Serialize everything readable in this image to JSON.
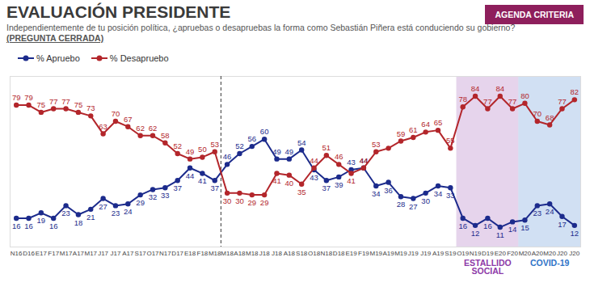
{
  "chart_data": {
    "type": "line",
    "title": "EVALUACIÓN PRESIDENTE",
    "subtitle": "Independientemente de tu posición política, ¿apruebas o desapruebas la forma como Sebastián Piñera está conduciendo su gobierno?",
    "subtitle_tag": "(PREGUNTA CERRADA)",
    "source": "AGENDA CRITERIA",
    "categories": [
      "N16",
      "D16",
      "E17",
      "F17",
      "M17",
      "A17",
      "M17",
      "J17",
      "J17",
      "A17",
      "S17",
      "O17",
      "N17",
      "D17",
      "E18",
      "F18",
      "M18",
      "M18",
      "A18",
      "M18",
      "J18",
      "J18",
      "A18",
      "S18",
      "O18",
      "N18",
      "D18",
      "E19",
      "F19",
      "M19",
      "A19",
      "M19",
      "J19",
      "J19",
      "A19",
      "S19",
      "O19",
      "N19",
      "D19",
      "E20",
      "F20",
      "M20",
      "A20",
      "M20",
      "J20",
      "J20"
    ],
    "series": [
      {
        "name": "% Apruebo",
        "color": "#1c2b8c",
        "values": [
          16,
          16,
          19,
          16,
          23,
          18,
          21,
          27,
          23,
          24,
          29,
          32,
          33,
          37,
          44,
          41,
          37,
          46,
          52,
          56,
          60,
          49,
          49,
          54,
          43,
          37,
          39,
          43,
          44,
          34,
          36,
          28,
          27,
          30,
          34,
          33,
          16,
          12,
          16,
          11,
          14,
          15,
          23,
          24,
          17,
          12
        ]
      },
      {
        "name": "% Desapruebo",
        "color": "#b3262b",
        "values": [
          79,
          79,
          75,
          77,
          77,
          75,
          73,
          63,
          70,
          67,
          62,
          62,
          58,
          52,
          49,
          50,
          53,
          30,
          30,
          29,
          29,
          41,
          40,
          35,
          44,
          51,
          46,
          41,
          44,
          53,
          55,
          59,
          61,
          64,
          65,
          55,
          78,
          84,
          77,
          84,
          77,
          80,
          70,
          68,
          77,
          82
        ],
        "value_labels": [
          "79",
          "79",
          "75",
          "77",
          "77",
          "75",
          "73",
          "63",
          "70",
          "67",
          "62",
          "62",
          "58",
          "52",
          "49",
          "50",
          "53",
          "30",
          "30",
          "29",
          "29",
          "41",
          "40",
          "35",
          "44",
          "51",
          "46",
          "41",
          "44",
          "53",
          null,
          "59",
          "61",
          "64",
          "65",
          "55",
          "78",
          "84",
          "77",
          "84",
          "77",
          "80",
          "70",
          "68",
          "77",
          "82"
        ]
      }
    ],
    "ylim": [
      0,
      95
    ],
    "tick_labels": "x",
    "grid": false,
    "data_labels": true,
    "marker": "circle",
    "legend": "top-left",
    "divider_at": 17,
    "periods": [
      {
        "label": "ESTALLIDO SOCIAL",
        "start": 36,
        "end": 40,
        "color": "#8e3aa8"
      },
      {
        "label": "COVID-19",
        "start": 41,
        "end": 45,
        "color": "#2f74c8"
      }
    ]
  }
}
